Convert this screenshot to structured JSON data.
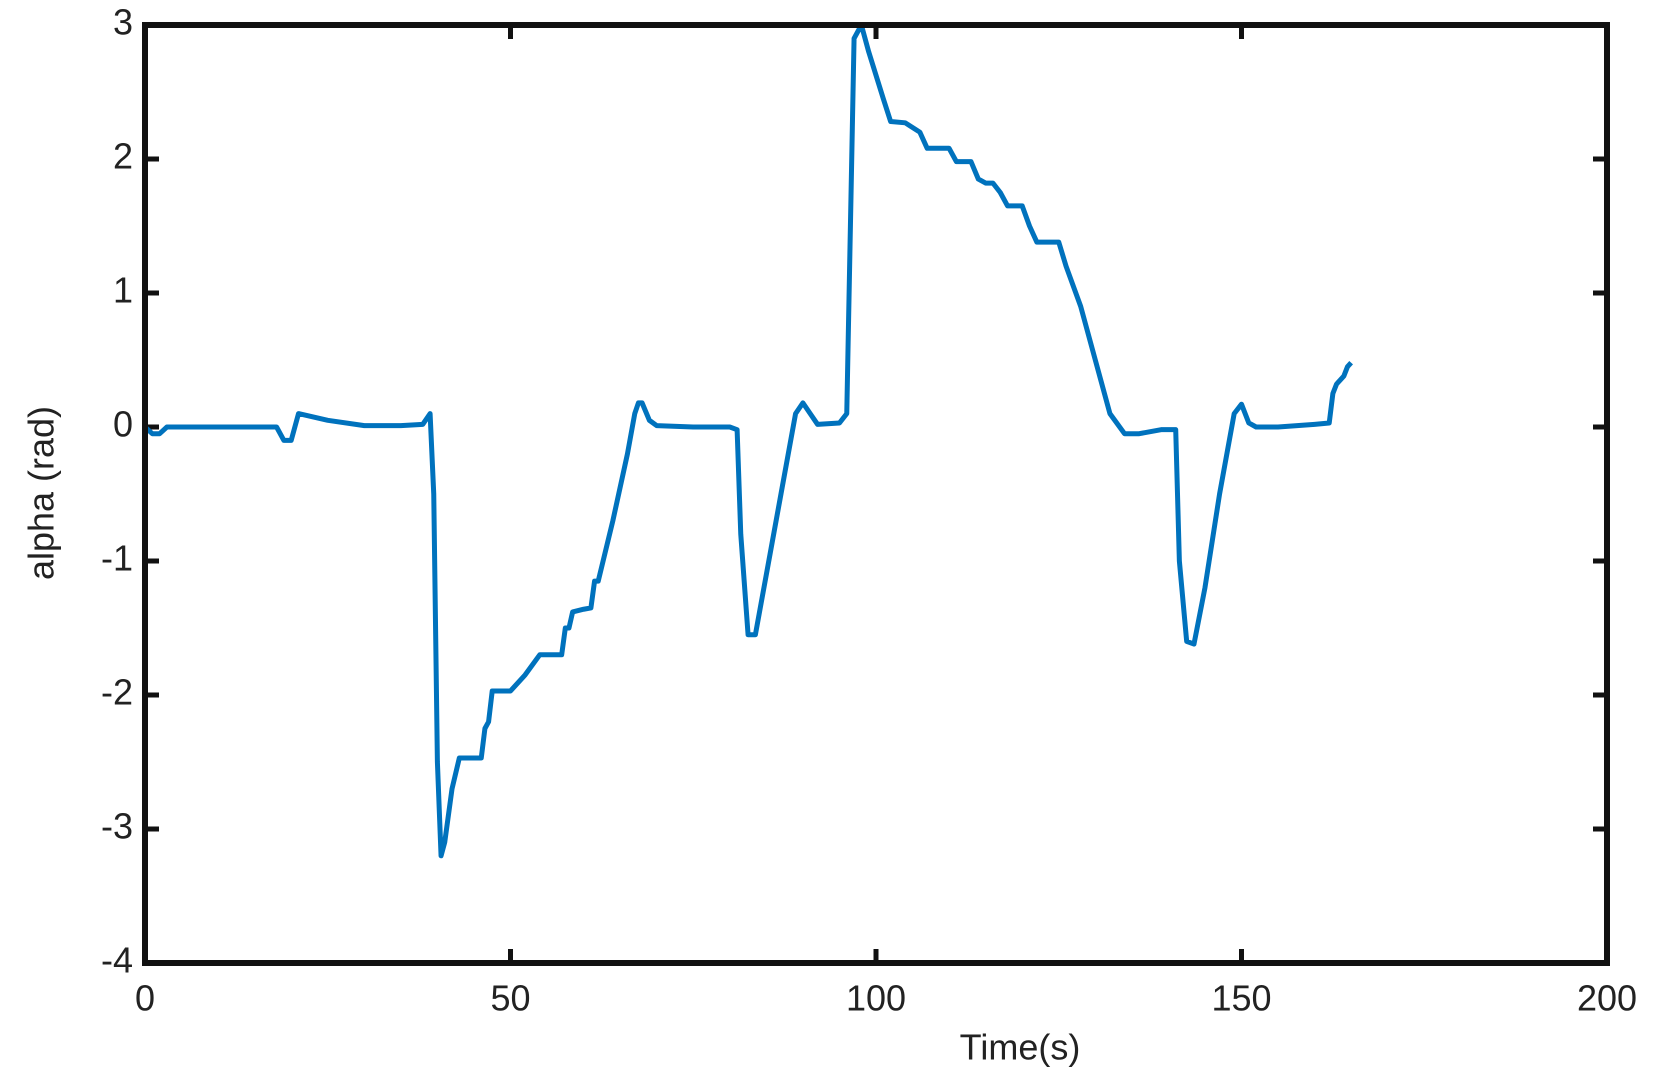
{
  "chart_data": {
    "type": "line",
    "xlabel": "Time(s)",
    "ylabel": "alpha (rad)",
    "xlim": [
      0,
      200
    ],
    "xticks": [
      0,
      50,
      100,
      150,
      200
    ],
    "ylim": [
      -4,
      3
    ],
    "yticks": [
      -4,
      -3,
      -2,
      -1,
      0,
      1,
      2,
      3
    ],
    "grid": false,
    "x": [
      0,
      1,
      2,
      3,
      4,
      10,
      18,
      19,
      20,
      21,
      25,
      30,
      35,
      38,
      39,
      39.5,
      40,
      40.5,
      41,
      42,
      43,
      46,
      46.5,
      47,
      47.5,
      50,
      52,
      54,
      56,
      57,
      57.5,
      58,
      58.5,
      60,
      61,
      61.5,
      62,
      64,
      66,
      67,
      67.5,
      68,
      69,
      70,
      75,
      80,
      81,
      81.5,
      82.5,
      83.5,
      85,
      87,
      89,
      90,
      91,
      92,
      95,
      96,
      96.5,
      97,
      98,
      99,
      101,
      102,
      104,
      106,
      107,
      110,
      111,
      113,
      114,
      115,
      116,
      117,
      118,
      120,
      121,
      122,
      125,
      126,
      128,
      130,
      132,
      134,
      136,
      139,
      141,
      141.5,
      142.5,
      143.5,
      145,
      147,
      149,
      150,
      151,
      152,
      155,
      160,
      162,
      162.5,
      163,
      164,
      164.5,
      165
    ],
    "series": [
      {
        "color": "#0072bd",
        "values": [
          0,
          -0.05,
          -0.05,
          0,
          0,
          0,
          0,
          -0.1,
          -0.1,
          0.1,
          0.05,
          0.01,
          0.01,
          0.02,
          0.1,
          -0.5,
          -2.5,
          -3.2,
          -3.1,
          -2.7,
          -2.47,
          -2.47,
          -2.25,
          -2.2,
          -1.97,
          -1.97,
          -1.85,
          -1.7,
          -1.7,
          -1.7,
          -1.5,
          -1.5,
          -1.38,
          -1.36,
          -1.35,
          -1.15,
          -1.15,
          -0.7,
          -0.2,
          0.1,
          0.18,
          0.18,
          0.05,
          0.01,
          0,
          0,
          -0.02,
          -0.8,
          -1.55,
          -1.55,
          -1.1,
          -0.5,
          0.1,
          0.18,
          0.1,
          0.02,
          0.03,
          0.1,
          1.5,
          2.9,
          3.0,
          2.8,
          2.45,
          2.28,
          2.27,
          2.2,
          2.08,
          2.08,
          1.98,
          1.98,
          1.85,
          1.82,
          1.82,
          1.75,
          1.65,
          1.65,
          1.5,
          1.38,
          1.38,
          1.2,
          0.9,
          0.5,
          0.1,
          -0.05,
          -0.05,
          -0.02,
          -0.02,
          -1,
          -1.6,
          -1.62,
          -1.2,
          -0.5,
          0.1,
          0.17,
          0.03,
          0,
          0,
          0.02,
          0.03,
          0.25,
          0.32,
          0.38,
          0.45,
          0.48
        ]
      }
    ]
  }
}
